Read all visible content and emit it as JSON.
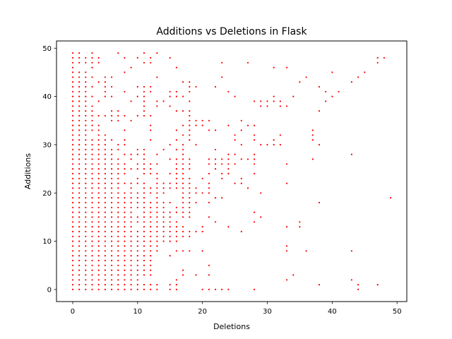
{
  "chart_data": {
    "type": "scatter",
    "title": "Additions vs Deletions in Flask",
    "xlabel": "Deletions",
    "ylabel": "Additions",
    "xlim": [
      -2.5,
      51.5
    ],
    "ylim": [
      -2.5,
      51.5
    ],
    "xticks": [
      0,
      10,
      20,
      30,
      40,
      50
    ],
    "yticks": [
      0,
      10,
      20,
      30,
      40,
      50
    ],
    "grid": false,
    "marker_color": "#ff0000",
    "points_by_x": [
      {
        "x": 0,
        "ys": [
          0,
          1,
          2,
          3,
          4,
          5,
          6,
          7,
          8,
          9,
          10,
          11,
          12,
          13,
          14,
          15,
          16,
          17,
          18,
          19,
          20,
          21,
          22,
          23,
          24,
          25,
          26,
          27,
          28,
          29,
          30,
          31,
          32,
          33,
          34,
          35,
          36,
          37,
          38,
          39,
          40,
          41,
          42,
          43,
          44,
          45,
          46,
          47,
          48,
          49
        ]
      },
      {
        "x": 1,
        "ys": [
          0,
          1,
          2,
          3,
          4,
          5,
          6,
          7,
          8,
          9,
          10,
          11,
          12,
          13,
          14,
          15,
          16,
          17,
          18,
          19,
          20,
          21,
          22,
          23,
          24,
          25,
          26,
          27,
          28,
          29,
          30,
          31,
          32,
          33,
          34,
          35,
          36,
          37,
          38,
          39,
          40,
          41,
          42,
          43,
          44,
          45,
          47,
          48,
          49
        ]
      },
      {
        "x": 2,
        "ys": [
          0,
          1,
          2,
          3,
          4,
          5,
          6,
          7,
          8,
          9,
          10,
          11,
          12,
          13,
          14,
          15,
          16,
          17,
          18,
          19,
          20,
          21,
          22,
          23,
          24,
          25,
          26,
          27,
          28,
          29,
          30,
          31,
          32,
          33,
          34,
          35,
          36,
          37,
          38,
          39,
          40,
          41,
          42,
          43,
          44,
          45,
          47,
          48
        ]
      },
      {
        "x": 3,
        "ys": [
          0,
          1,
          2,
          3,
          4,
          5,
          6,
          7,
          8,
          9,
          10,
          11,
          12,
          13,
          14,
          15,
          16,
          17,
          18,
          19,
          20,
          21,
          22,
          23,
          24,
          25,
          26,
          27,
          28,
          29,
          30,
          31,
          33,
          34,
          35,
          36,
          37,
          38,
          40,
          42,
          44,
          46,
          47,
          48,
          49
        ]
      },
      {
        "x": 4,
        "ys": [
          0,
          1,
          2,
          3,
          4,
          5,
          6,
          7,
          8,
          9,
          10,
          11,
          12,
          13,
          14,
          15,
          16,
          17,
          18,
          19,
          20,
          21,
          22,
          23,
          24,
          25,
          26,
          27,
          28,
          29,
          30,
          31,
          32,
          33,
          34,
          36,
          39,
          43,
          47,
          48
        ]
      },
      {
        "x": 5,
        "ys": [
          0,
          1,
          2,
          3,
          4,
          5,
          6,
          7,
          8,
          9,
          10,
          11,
          12,
          13,
          14,
          15,
          16,
          17,
          18,
          19,
          20,
          21,
          22,
          23,
          24,
          25,
          26,
          27,
          28,
          29,
          30,
          31,
          32,
          36,
          40,
          41,
          42,
          43,
          44
        ]
      },
      {
        "x": 6,
        "ys": [
          0,
          1,
          2,
          3,
          4,
          5,
          6,
          7,
          8,
          9,
          10,
          11,
          12,
          13,
          14,
          15,
          16,
          17,
          18,
          19,
          20,
          21,
          22,
          23,
          24,
          25,
          26,
          27,
          28,
          29,
          31,
          35,
          36,
          37,
          40,
          42,
          44
        ]
      },
      {
        "x": 7,
        "ys": [
          0,
          1,
          2,
          3,
          4,
          5,
          6,
          7,
          8,
          9,
          10,
          11,
          12,
          13,
          14,
          15,
          16,
          17,
          18,
          19,
          20,
          21,
          22,
          23,
          24,
          25,
          26,
          27,
          29,
          30,
          35,
          36,
          37,
          49
        ]
      },
      {
        "x": 8,
        "ys": [
          0,
          1,
          2,
          3,
          4,
          5,
          6,
          7,
          8,
          9,
          10,
          11,
          12,
          13,
          14,
          15,
          16,
          17,
          18,
          19,
          20,
          22,
          24,
          25,
          26,
          28,
          30,
          31,
          33,
          36,
          41,
          45,
          48
        ]
      },
      {
        "x": 9,
        "ys": [
          0,
          1,
          2,
          3,
          4,
          5,
          6,
          7,
          8,
          9,
          10,
          11,
          12,
          13,
          14,
          15,
          16,
          17,
          18,
          19,
          20,
          21,
          22,
          25,
          27,
          28,
          35,
          39,
          46
        ]
      },
      {
        "x": 10,
        "ys": [
          0,
          1,
          2,
          3,
          4,
          5,
          6,
          7,
          8,
          9,
          10,
          11,
          12,
          14,
          15,
          17,
          18,
          19,
          20,
          22,
          23,
          25,
          26,
          28,
          29,
          36,
          40,
          42,
          48
        ]
      },
      {
        "x": 11,
        "ys": [
          0,
          1,
          3,
          4,
          5,
          6,
          7,
          8,
          9,
          10,
          11,
          12,
          13,
          14,
          15,
          16,
          17,
          18,
          19,
          20,
          21,
          22,
          24,
          25,
          26,
          27,
          28,
          29,
          36,
          37,
          38,
          39,
          40,
          41,
          42,
          47,
          49
        ]
      },
      {
        "x": 12,
        "ys": [
          0,
          1,
          3,
          4,
          5,
          6,
          7,
          8,
          9,
          10,
          11,
          12,
          13,
          14,
          15,
          16,
          17,
          18,
          20,
          21,
          24,
          25,
          26,
          31,
          33,
          34,
          36,
          41,
          42,
          47,
          48
        ]
      },
      {
        "x": 13,
        "ys": [
          0,
          1,
          8,
          9,
          10,
          11,
          12,
          13,
          14,
          15,
          16,
          17,
          18,
          19,
          20,
          21,
          22,
          23,
          24,
          26,
          28,
          38,
          39,
          44,
          49
        ]
      },
      {
        "x": 14,
        "ys": [
          10,
          11,
          12,
          13,
          14,
          15,
          16,
          17,
          18,
          20,
          21,
          22,
          29,
          39
        ]
      },
      {
        "x": 15,
        "ys": [
          0,
          1,
          7,
          10,
          11,
          12,
          13,
          14,
          15,
          16,
          18,
          21,
          22,
          24,
          27,
          30,
          38,
          40,
          41,
          48
        ]
      },
      {
        "x": 16,
        "ys": [
          0,
          1,
          2,
          8,
          10,
          11,
          12,
          13,
          14,
          16,
          17,
          21,
          22,
          23,
          24,
          25,
          26,
          27,
          29,
          31,
          33,
          37,
          40,
          41,
          46
        ]
      },
      {
        "x": 17,
        "ys": [
          3,
          4,
          8,
          11,
          12,
          13,
          15,
          16,
          17,
          18,
          19,
          20,
          21,
          22,
          23,
          24,
          25,
          26,
          27,
          28,
          29,
          30,
          32,
          34,
          37,
          40,
          43
        ]
      },
      {
        "x": 18,
        "ys": [
          8,
          11,
          12,
          15,
          16,
          17,
          18,
          19,
          20,
          21,
          22,
          23,
          25,
          26,
          27,
          31,
          32,
          33,
          34,
          35,
          36,
          37,
          39,
          41,
          42,
          43
        ]
      },
      {
        "x": 19,
        "ys": [
          3,
          12,
          18,
          20,
          21,
          30,
          34,
          35,
          42
        ]
      },
      {
        "x": 20,
        "ys": [
          0,
          8,
          12,
          13,
          20,
          23,
          34,
          35
        ]
      },
      {
        "x": 21,
        "ys": [
          0,
          3,
          5,
          15,
          18,
          20,
          21,
          22,
          24,
          26,
          27,
          33,
          35
        ]
      },
      {
        "x": 22,
        "ys": [
          0,
          14,
          19,
          25,
          26,
          27,
          29,
          33,
          42
        ]
      },
      {
        "x": 23,
        "ys": [
          0,
          19,
          23,
          24,
          26,
          27,
          44,
          47
        ]
      },
      {
        "x": 24,
        "ys": [
          0,
          13,
          24,
          25,
          26,
          27,
          28,
          34,
          41
        ]
      },
      {
        "x": 25,
        "ys": [
          22,
          26,
          28,
          31,
          32,
          40
        ]
      },
      {
        "x": 26,
        "ys": [
          12,
          22,
          23,
          27,
          30,
          33,
          35
        ]
      },
      {
        "x": 27,
        "ys": [
          21,
          27,
          34,
          47
        ]
      },
      {
        "x": 28,
        "ys": [
          0,
          14,
          16,
          24,
          26,
          27,
          28,
          31,
          32,
          34,
          39
        ]
      },
      {
        "x": 29,
        "ys": [
          15,
          20,
          30,
          38,
          39
        ]
      },
      {
        "x": 30,
        "ys": [
          30,
          38,
          39
        ]
      },
      {
        "x": 31,
        "ys": [
          30,
          31,
          39,
          40,
          46
        ]
      },
      {
        "x": 32,
        "ys": [
          30,
          32,
          38,
          39
        ]
      },
      {
        "x": 33,
        "ys": [
          2,
          8,
          9,
          13,
          22,
          26,
          38,
          46
        ]
      },
      {
        "x": 34,
        "ys": [
          3,
          40
        ]
      },
      {
        "x": 35,
        "ys": [
          13,
          14,
          43
        ]
      },
      {
        "x": 36,
        "ys": [
          8,
          44
        ]
      },
      {
        "x": 37,
        "ys": [
          27,
          31,
          32,
          33
        ]
      },
      {
        "x": 38,
        "ys": [
          1,
          18,
          30,
          37,
          42
        ]
      },
      {
        "x": 39,
        "ys": [
          39,
          41
        ]
      },
      {
        "x": 40,
        "ys": [
          40,
          45
        ]
      },
      {
        "x": 41,
        "ys": [
          41
        ]
      },
      {
        "x": 43,
        "ys": [
          2,
          8,
          28,
          43
        ]
      },
      {
        "x": 44,
        "ys": [
          0,
          1,
          44
        ]
      },
      {
        "x": 45,
        "ys": [
          45
        ]
      },
      {
        "x": 47,
        "ys": [
          1,
          47,
          48
        ]
      },
      {
        "x": 48,
        "ys": [
          48
        ]
      },
      {
        "x": 49,
        "ys": [
          19
        ]
      }
    ]
  }
}
